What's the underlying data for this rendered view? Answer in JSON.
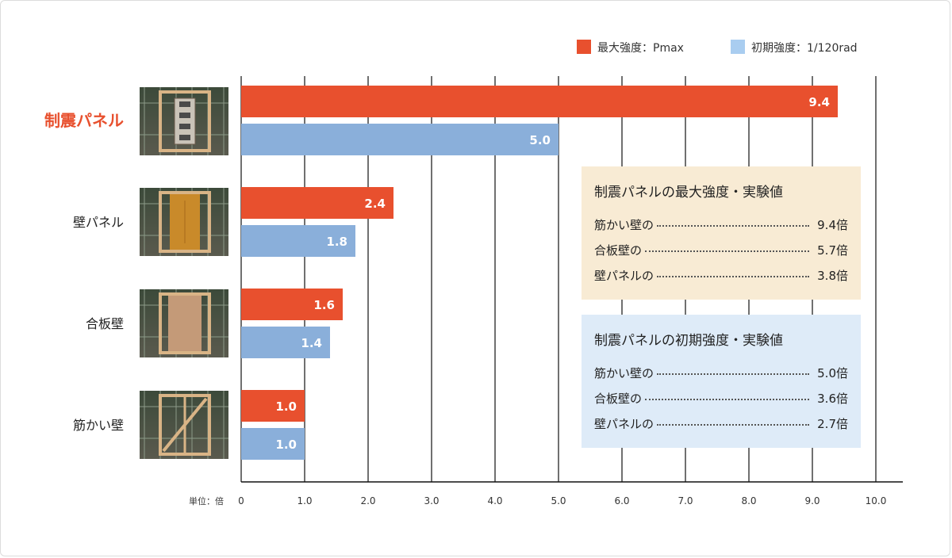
{
  "chart_data": {
    "type": "bar",
    "orientation": "horizontal",
    "categories": [
      "制震パネル",
      "壁パネル",
      "合板壁",
      "筋かい壁"
    ],
    "highlight_category": "制震パネル",
    "series": [
      {
        "name": "最大強度：Pmax",
        "color": "#e8502e",
        "values": [
          9.4,
          2.4,
          1.6,
          1.0
        ],
        "labels": [
          "9.4",
          "2.4",
          "1.6",
          "1.0"
        ]
      },
      {
        "name": "初期強度：1/120rad",
        "color": "#8aafda",
        "values": [
          5.0,
          1.8,
          1.4,
          1.0
        ],
        "labels": [
          "5.0",
          "1.8",
          "1.4",
          "1.0"
        ]
      }
    ],
    "legend_colors": [
      "#e8502e",
      "#a9cdf0"
    ],
    "xlim": [
      0,
      10
    ],
    "xticks": [
      0,
      1,
      2,
      3,
      4,
      5,
      6,
      7,
      8,
      9,
      10
    ],
    "xtick_labels": [
      "0",
      "1.0",
      "2.0",
      "3.0",
      "4.0",
      "5.0",
      "6.0",
      "7.0",
      "8.0",
      "9.0",
      "10.0"
    ],
    "unit_label": "単位：倍",
    "grid": true,
    "legend_position": "top-right",
    "photo_icons": [
      "seismic-panel-photo-icon",
      "wall-panel-photo-icon",
      "plywood-wall-photo-icon",
      "braced-wall-photo-icon"
    ]
  },
  "boxes": [
    {
      "title": "制震パネルの最大強度・実験値",
      "bg": "#f8ebd4",
      "rows": [
        {
          "label": "筋かい壁の",
          "value": "9.4倍"
        },
        {
          "label": "合板壁の",
          "value": "5.7倍"
        },
        {
          "label": "壁パネルの",
          "value": "3.8倍"
        }
      ]
    },
    {
      "title": "制震パネルの初期強度・実験値",
      "bg": "#deebf8",
      "rows": [
        {
          "label": "筋かい壁の",
          "value": "5.0倍"
        },
        {
          "label": "合板壁の",
          "value": "3.6倍"
        },
        {
          "label": "壁パネルの",
          "value": "2.7倍"
        }
      ]
    }
  ]
}
